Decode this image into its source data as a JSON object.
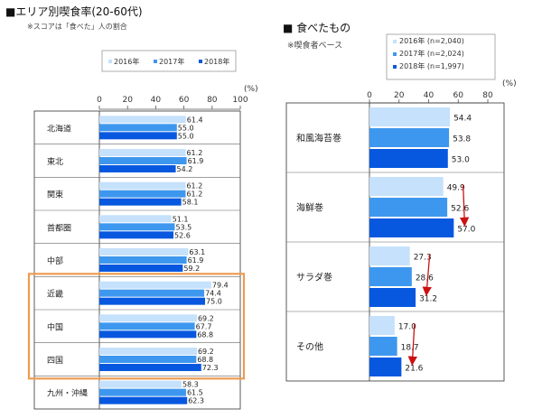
{
  "left": {
    "title": "■エリア別喫食率(20-60代)",
    "note": "※スコアは「食べた」人の割合",
    "legend": [
      "2016年",
      "2017年",
      "2018年"
    ],
    "unit": "(%)"
  },
  "right": {
    "title": "■ 食べたもの",
    "note": "※喫食者ベース",
    "legend": [
      "2016年 (n=2,040)",
      "2017年 (n=2,024)",
      "2018年 (n=1,997)"
    ],
    "unit": "(%)"
  },
  "colors": [
    "#c5e1fb",
    "#3e97ee",
    "#0758df"
  ],
  "highlight_color": "#ee9b50",
  "arrow_color": "#cc1111",
  "chart_data": [
    {
      "type": "bar",
      "orientation": "horizontal",
      "title": "エリア別喫食率(20-60代)",
      "categories": [
        "北海道",
        "東北",
        "関東",
        "首都圏",
        "中部",
        "近畿",
        "中国",
        "四国",
        "九州・沖縄"
      ],
      "series": [
        {
          "name": "2016年",
          "values": [
            61.4,
            61.2,
            61.2,
            51.1,
            63.1,
            79.4,
            69.2,
            69.2,
            58.3
          ]
        },
        {
          "name": "2017年",
          "values": [
            55.0,
            61.9,
            61.2,
            53.5,
            61.9,
            74.4,
            67.7,
            68.8,
            61.5
          ]
        },
        {
          "name": "2018年",
          "values": [
            55.0,
            54.2,
            58.1,
            52.6,
            59.2,
            75.0,
            68.8,
            72.3,
            62.3
          ]
        }
      ],
      "xlim": [
        0,
        100
      ],
      "ticks": [
        "0",
        "20",
        "40",
        "60",
        "80",
        "100"
      ],
      "unit": "(%)",
      "highlighted_categories": [
        "近畿",
        "中国",
        "四国"
      ],
      "legend_position": "top"
    },
    {
      "type": "bar",
      "orientation": "horizontal",
      "title": "食べたもの",
      "categories": [
        "和風海苔巻",
        "海鮮巻",
        "サラダ巻",
        "その他"
      ],
      "series": [
        {
          "name": "2016年 (n=2,040)",
          "values": [
            54.4,
            49.9,
            27.3,
            17.0
          ]
        },
        {
          "name": "2017年 (n=2,024)",
          "values": [
            53.8,
            52.6,
            28.6,
            18.7
          ]
        },
        {
          "name": "2018年 (n=1,997)",
          "values": [
            53.0,
            57.0,
            31.2,
            21.6
          ]
        }
      ],
      "xlim": [
        0,
        80
      ],
      "ticks": [
        "0",
        "20",
        "40",
        "60",
        "80"
      ],
      "unit": "(%)",
      "trend_arrows": [
        "海鮮巻",
        "サラダ巻",
        "その他"
      ],
      "legend_position": "top"
    }
  ]
}
